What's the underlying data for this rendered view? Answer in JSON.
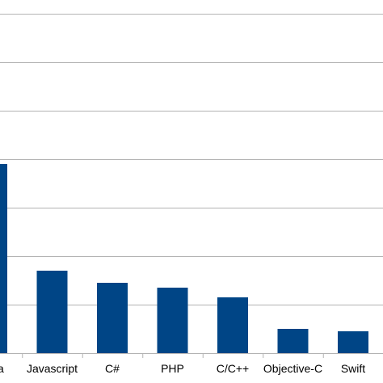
{
  "chart_data": {
    "type": "bar",
    "categories": [
      "Java",
      "Javascript",
      "C#",
      "PHP",
      "C/C++",
      "Objective-C",
      "Swift"
    ],
    "values": [
      3.9,
      1.7,
      1.45,
      1.35,
      1.15,
      0.5,
      0.45
    ],
    "ylim": [
      0,
      7
    ],
    "grid": true,
    "bar_color": "#004586",
    "grid_color": "#b3b3b3",
    "title": "",
    "xlabel": "",
    "ylabel": ""
  }
}
